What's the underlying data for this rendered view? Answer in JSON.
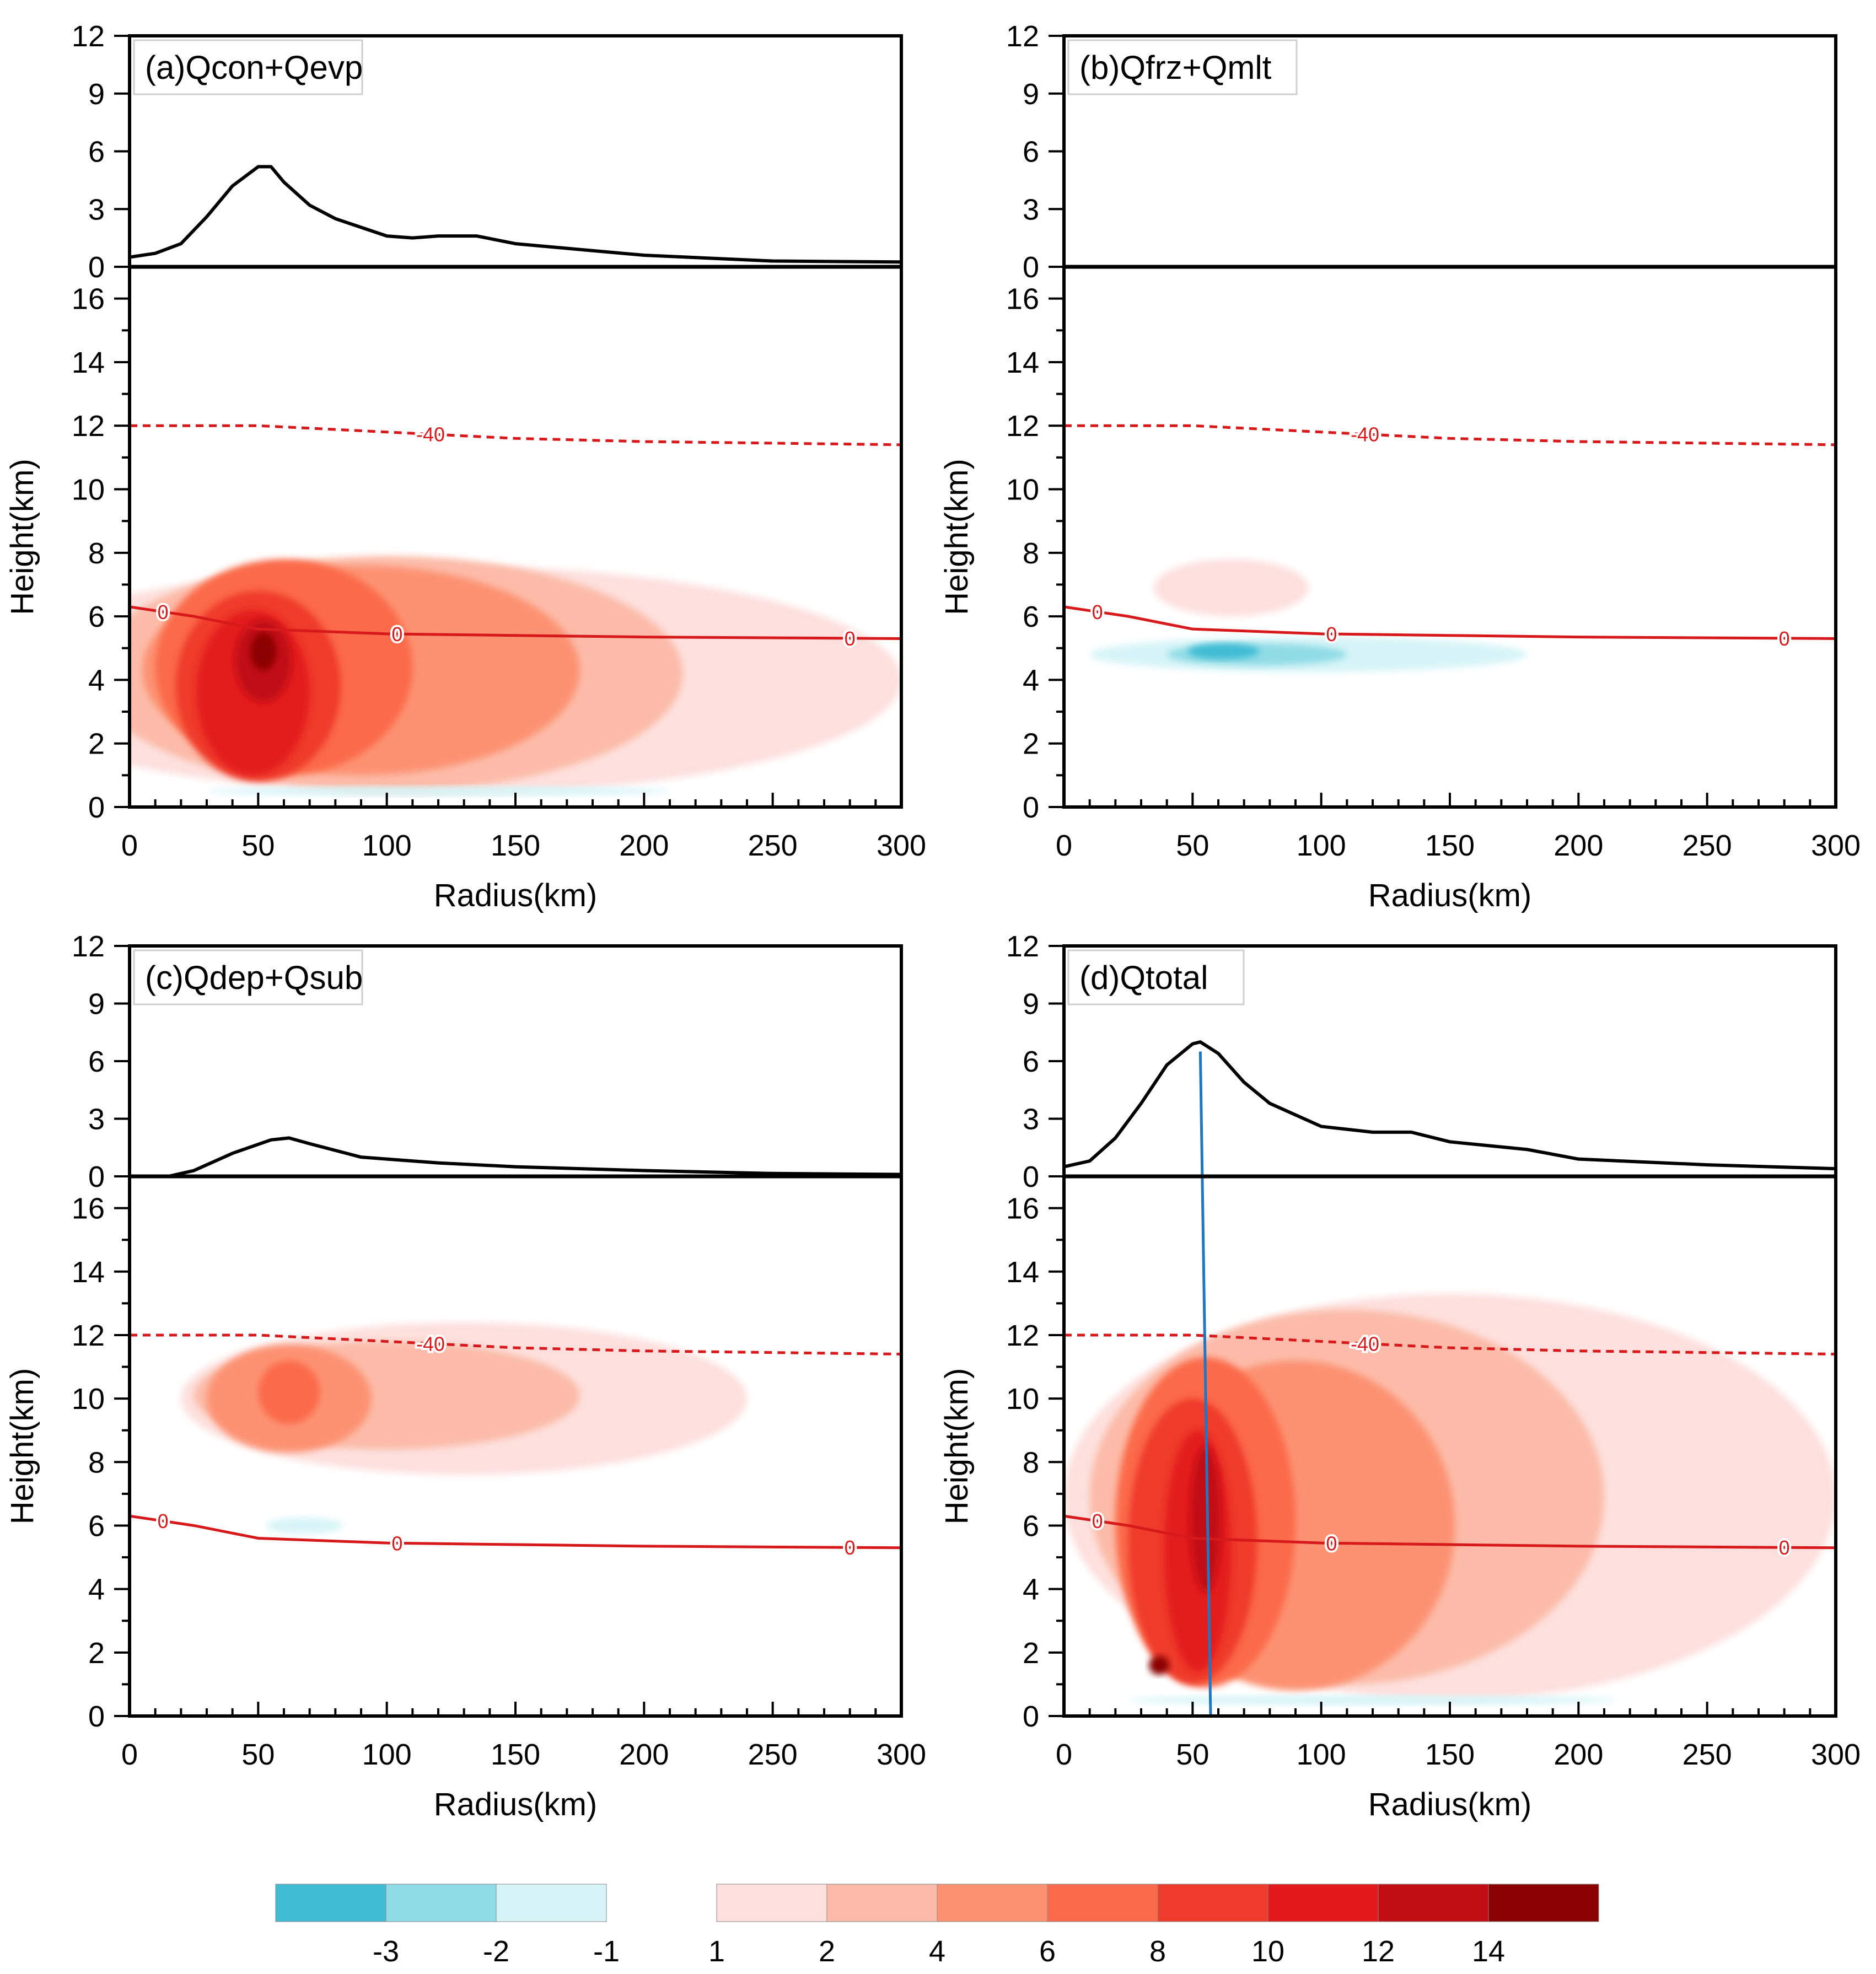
{
  "chart_data": {
    "type": "contour",
    "units_note": "heating rate shading; top strips show vertically integrated profile vs radius",
    "panels": [
      {
        "id": "a",
        "title": "(a)Qcon+Qevp",
        "xlabel": "Radius(km)",
        "ylabel": "Height(km)",
        "xlim": [
          0,
          300
        ],
        "ylim": [
          0,
          17
        ],
        "top_ylim": [
          0,
          12
        ],
        "line_profile": {
          "x": [
            0,
            10,
            20,
            30,
            40,
            50,
            55,
            60,
            70,
            80,
            100,
            110,
            120,
            135,
            150,
            175,
            200,
            250,
            300
          ],
          "y": [
            0.5,
            0.7,
            1.2,
            2.6,
            4.2,
            5.2,
            5.2,
            4.4,
            3.2,
            2.5,
            1.6,
            1.5,
            1.6,
            1.6,
            1.2,
            0.9,
            0.6,
            0.3,
            0.25
          ]
        },
        "shaded_regions": [
          {
            "level": 1,
            "center_km": [
              120,
              4.0
            ],
            "radius_x": 180,
            "radius_y": 3.6
          },
          {
            "level": 2,
            "center_km": [
              100,
              4.2
            ],
            "radius_x": 115,
            "radius_y": 3.7
          },
          {
            "level": 4,
            "center_km": [
              90,
              4.3
            ],
            "radius_x": 85,
            "radius_y": 3.3
          },
          {
            "level": 6,
            "center_km": [
              60,
              4.4
            ],
            "radius_x": 50,
            "radius_y": 3.4
          },
          {
            "level": 8,
            "center_km": [
              50,
              3.8
            ],
            "radius_x": 32,
            "radius_y": 3.0
          },
          {
            "level": 10,
            "center_km": [
              48,
              3.6
            ],
            "radius_x": 22,
            "radius_y": 2.6
          },
          {
            "level": 12,
            "center_km": [
              52,
              4.6
            ],
            "radius_x": 11,
            "radius_y": 1.3
          },
          {
            "level": 14,
            "center_km": [
              52,
              4.9
            ],
            "radius_x": 5,
            "radius_y": 0.6
          },
          {
            "level": -1,
            "center_km": [
              120,
              0.5
            ],
            "radius_x": 90,
            "radius_y": 0.15
          }
        ],
        "contours": [
          {
            "label": "-40",
            "dash": true,
            "x": [
              0,
              50,
              100,
              150,
              200,
              300
            ],
            "y": [
              12.0,
              12.0,
              11.8,
              11.6,
              11.5,
              11.4
            ],
            "label_x": 117
          },
          {
            "label": "0",
            "dash": false,
            "x": [
              0,
              25,
              50,
              100,
              150,
              200,
              300
            ],
            "y": [
              6.3,
              6.0,
              5.6,
              5.45,
              5.4,
              5.35,
              5.3
            ],
            "label_x": [
              13,
              104,
              280
            ]
          }
        ]
      },
      {
        "id": "b",
        "title": "(b)Qfrz+Qmlt",
        "xlabel": "Radius(km)",
        "ylabel": "Height(km)",
        "xlim": [
          0,
          300
        ],
        "ylim": [
          0,
          17
        ],
        "top_ylim": [
          0,
          12
        ],
        "line_profile": {
          "x": [
            0,
            300
          ],
          "y": [
            0,
            0
          ]
        },
        "shaded_regions": [
          {
            "level": 1,
            "center_km": [
              65,
              6.9
            ],
            "radius_x": 30,
            "radius_y": 0.9
          },
          {
            "level": -1,
            "center_km": [
              95,
              4.8
            ],
            "radius_x": 85,
            "radius_y": 0.55
          },
          {
            "level": -2,
            "center_km": [
              75,
              4.8
            ],
            "radius_x": 35,
            "radius_y": 0.35
          },
          {
            "level": -3,
            "center_km": [
              62,
              4.9
            ],
            "radius_x": 14,
            "radius_y": 0.25
          }
        ],
        "contours": [
          {
            "label": "-40",
            "dash": true,
            "x": [
              0,
              50,
              100,
              150,
              200,
              300
            ],
            "y": [
              12.0,
              12.0,
              11.8,
              11.6,
              11.5,
              11.4
            ],
            "label_x": 117
          },
          {
            "label": "0",
            "dash": false,
            "x": [
              0,
              25,
              50,
              100,
              150,
              200,
              300
            ],
            "y": [
              6.3,
              6.0,
              5.6,
              5.45,
              5.4,
              5.35,
              5.3
            ],
            "label_x": [
              13,
              104,
              280
            ]
          }
        ]
      },
      {
        "id": "c",
        "title": "(c)Qdep+Qsub",
        "xlabel": "Radius(km)",
        "ylabel": "Height(km)",
        "xlim": [
          0,
          300
        ],
        "ylim": [
          0,
          17
        ],
        "top_ylim": [
          0,
          12
        ],
        "line_profile": {
          "x": [
            0,
            15,
            25,
            40,
            55,
            62,
            70,
            90,
            100,
            120,
            150,
            200,
            250,
            300
          ],
          "y": [
            0,
            0,
            0.3,
            1.2,
            1.9,
            2.0,
            1.7,
            1.0,
            0.9,
            0.7,
            0.5,
            0.3,
            0.15,
            0.1
          ]
        },
        "shaded_regions": [
          {
            "level": 1,
            "center_km": [
              130,
              10.0
            ],
            "radius_x": 110,
            "radius_y": 2.4
          },
          {
            "level": 2,
            "center_km": [
              100,
              10.1
            ],
            "radius_x": 75,
            "radius_y": 1.7
          },
          {
            "level": 4,
            "center_km": [
              62,
              10.0
            ],
            "radius_x": 32,
            "radius_y": 1.7
          },
          {
            "level": 6,
            "center_km": [
              62,
              10.2
            ],
            "radius_x": 12,
            "radius_y": 1.0
          },
          {
            "level": -1,
            "center_km": [
              68,
              6.0
            ],
            "radius_x": 15,
            "radius_y": 0.25
          }
        ],
        "contours": [
          {
            "label": "-40",
            "dash": true,
            "x": [
              0,
              50,
              100,
              150,
              200,
              300
            ],
            "y": [
              12.0,
              12.0,
              11.8,
              11.6,
              11.5,
              11.4
            ],
            "label_x": 117
          },
          {
            "label": "0",
            "dash": false,
            "x": [
              0,
              25,
              50,
              100,
              150,
              200,
              300
            ],
            "y": [
              6.3,
              6.0,
              5.6,
              5.45,
              5.4,
              5.35,
              5.3
            ],
            "label_x": [
              13,
              104,
              280
            ]
          }
        ]
      },
      {
        "id": "d",
        "title": "(d)Qtotal",
        "xlabel": "Radius(km)",
        "ylabel": "Height(km)",
        "xlim": [
          0,
          300
        ],
        "ylim": [
          0,
          17
        ],
        "top_ylim": [
          0,
          12
        ],
        "line_profile": {
          "x": [
            0,
            10,
            20,
            30,
            40,
            50,
            53,
            60,
            70,
            80,
            100,
            120,
            135,
            150,
            180,
            200,
            250,
            300
          ],
          "y": [
            0.5,
            0.8,
            2.0,
            3.8,
            5.8,
            6.9,
            7.0,
            6.4,
            4.9,
            3.8,
            2.6,
            2.3,
            2.3,
            1.8,
            1.4,
            0.9,
            0.6,
            0.4
          ]
        },
        "shaded_regions": [
          {
            "level": 1,
            "center_km": [
              150,
              6.9
            ],
            "radius_x": 150,
            "radius_y": 6.4
          },
          {
            "level": 2,
            "center_km": [
              110,
              6.9
            ],
            "radius_x": 100,
            "radius_y": 5.9
          },
          {
            "level": 4,
            "center_km": [
              90,
              6.0
            ],
            "radius_x": 62,
            "radius_y": 5.2
          },
          {
            "level": 6,
            "center_km": [
              55,
              6.1
            ],
            "radius_x": 35,
            "radius_y": 5.2
          },
          {
            "level": 8,
            "center_km": [
              50,
              5.5
            ],
            "radius_x": 25,
            "radius_y": 4.5
          },
          {
            "level": 10,
            "center_km": [
              52,
              5.2
            ],
            "radius_x": 13,
            "radius_y": 3.8
          },
          {
            "level": 12,
            "center_km": [
              55,
              6.2
            ],
            "radius_x": 6,
            "radius_y": 2.3
          },
          {
            "level": 14,
            "center_km": [
              37,
              1.6
            ],
            "radius_x": 4,
            "radius_y": 0.3
          },
          {
            "level": -1,
            "center_km": [
              120,
              0.5
            ],
            "radius_x": 95,
            "radius_y": 0.15
          }
        ],
        "vertical_line": {
          "x": [
            53,
            57
          ],
          "y_top_profile": 6.5,
          "y_bottom": 0
        },
        "contours": [
          {
            "label": "-40",
            "dash": true,
            "x": [
              0,
              50,
              100,
              150,
              200,
              300
            ],
            "y": [
              12.0,
              12.0,
              11.8,
              11.6,
              11.5,
              11.4
            ],
            "label_x": 117
          },
          {
            "label": "0",
            "dash": false,
            "x": [
              0,
              25,
              50,
              100,
              150,
              200,
              300
            ],
            "y": [
              6.3,
              6.0,
              5.6,
              5.45,
              5.4,
              5.35,
              5.3
            ],
            "label_x": [
              13,
              104,
              280
            ]
          }
        ]
      }
    ],
    "x_ticks": [
      "0",
      "50",
      "100",
      "150",
      "200",
      "250",
      "300"
    ],
    "y_ticks_main": [
      "0",
      "2",
      "4",
      "6",
      "8",
      "10",
      "12",
      "14",
      "16"
    ],
    "y_ticks_top": [
      "0",
      "3",
      "6",
      "9",
      "12"
    ],
    "colorbar": {
      "neg_labels": [
        "-3",
        "-2",
        "-1"
      ],
      "pos_labels": [
        "1",
        "2",
        "4",
        "6",
        "8",
        "10",
        "12",
        "14"
      ],
      "neg_colors": [
        "#40bcd4",
        "#90dce6",
        "#d6f4f7"
      ],
      "pos_colors": [
        "#fde0dd",
        "#fcbba8",
        "#fc9272",
        "#fb6a4a",
        "#ef3b2c",
        "#e31a1c",
        "#c10d14",
        "#8b0000"
      ]
    }
  }
}
